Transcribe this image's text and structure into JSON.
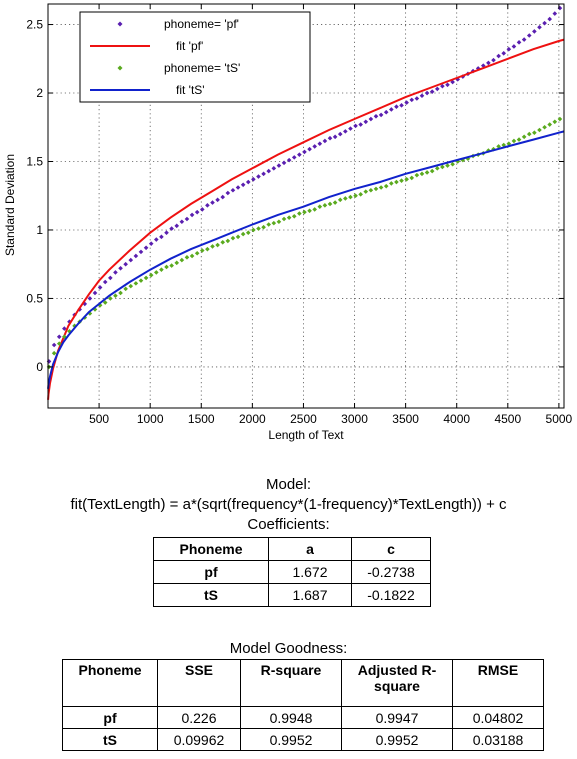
{
  "chart_data": {
    "type": "scatter",
    "xlabel": "Length of Text",
    "ylabel": "Standard Deviation",
    "xlim": [
      0,
      5050
    ],
    "ylim": [
      -0.3,
      2.65
    ],
    "xticks": [
      500,
      1000,
      1500,
      2000,
      2500,
      3000,
      3500,
      4000,
      4500,
      5000
    ],
    "yticks": [
      0,
      0.5,
      1,
      1.5,
      2,
      2.5
    ],
    "grid": true,
    "legend_position": "top-left",
    "series": [
      {
        "name": "phoneme= 'pf'",
        "kind": "points",
        "color": "#5a1fb0",
        "x": [
          10,
          60,
          110,
          160,
          210,
          260,
          310,
          360,
          410,
          460,
          510,
          560,
          610,
          660,
          710,
          760,
          810,
          860,
          910,
          960,
          1010,
          1060,
          1110,
          1160,
          1210,
          1260,
          1310,
          1360,
          1410,
          1460,
          1510,
          1560,
          1610,
          1660,
          1710,
          1760,
          1810,
          1860,
          1910,
          1960,
          2010,
          2060,
          2110,
          2160,
          2210,
          2260,
          2310,
          2360,
          2410,
          2460,
          2510,
          2560,
          2610,
          2660,
          2710,
          2760,
          2810,
          2860,
          2910,
          2960,
          3010,
          3060,
          3110,
          3160,
          3210,
          3260,
          3310,
          3360,
          3410,
          3460,
          3510,
          3560,
          3610,
          3660,
          3710,
          3760,
          3810,
          3860,
          3910,
          3960,
          4010,
          4060,
          4110,
          4160,
          4210,
          4260,
          4310,
          4360,
          4410,
          4460,
          4510,
          4560,
          4610,
          4660,
          4710,
          4760,
          4810,
          4860,
          4910,
          4960,
          5010
        ],
        "y": [
          0.04,
          0.16,
          0.22,
          0.28,
          0.33,
          0.38,
          0.42,
          0.46,
          0.5,
          0.54,
          0.58,
          0.62,
          0.65,
          0.69,
          0.72,
          0.75,
          0.78,
          0.81,
          0.84,
          0.87,
          0.9,
          0.93,
          0.95,
          0.98,
          1.01,
          1.03,
          1.06,
          1.08,
          1.11,
          1.13,
          1.15,
          1.18,
          1.2,
          1.22,
          1.24,
          1.27,
          1.29,
          1.31,
          1.33,
          1.35,
          1.37,
          1.39,
          1.41,
          1.43,
          1.45,
          1.47,
          1.49,
          1.51,
          1.53,
          1.55,
          1.57,
          1.59,
          1.61,
          1.63,
          1.65,
          1.67,
          1.68,
          1.7,
          1.72,
          1.74,
          1.76,
          1.77,
          1.79,
          1.81,
          1.83,
          1.84,
          1.86,
          1.88,
          1.9,
          1.91,
          1.93,
          1.95,
          1.96,
          1.98,
          2.0,
          2.01,
          2.03,
          2.05,
          2.06,
          2.08,
          2.1,
          2.12,
          2.14,
          2.16,
          2.18,
          2.2,
          2.22,
          2.24,
          2.27,
          2.29,
          2.32,
          2.34,
          2.37,
          2.39,
          2.42,
          2.45,
          2.48,
          2.51,
          2.54,
          2.58,
          2.62
        ]
      },
      {
        "name": "fit 'pf'",
        "kind": "line",
        "color": "#ee1111",
        "a": 1.672,
        "c": -0.2738,
        "x": [
          1,
          5,
          20,
          50,
          100,
          150,
          200,
          300,
          400,
          500,
          600,
          800,
          1000,
          1200,
          1400,
          1600,
          1800,
          2000,
          2250,
          2500,
          2750,
          3000,
          3250,
          3500,
          3750,
          4000,
          4250,
          4500,
          4750,
          5000,
          5050
        ],
        "y": [
          -0.24,
          -0.2,
          -0.12,
          -0.01,
          0.12,
          0.21,
          0.3,
          0.42,
          0.53,
          0.63,
          0.71,
          0.85,
          0.98,
          1.09,
          1.19,
          1.28,
          1.37,
          1.45,
          1.55,
          1.64,
          1.73,
          1.81,
          1.89,
          1.97,
          2.04,
          2.11,
          2.18,
          2.25,
          2.32,
          2.38,
          2.39
        ]
      },
      {
        "name": "phoneme= 'tS'",
        "kind": "points",
        "color": "#5aaa1e",
        "x": [
          10,
          60,
          110,
          160,
          210,
          260,
          310,
          360,
          410,
          460,
          510,
          560,
          610,
          660,
          710,
          760,
          810,
          860,
          910,
          960,
          1010,
          1060,
          1110,
          1160,
          1210,
          1260,
          1310,
          1360,
          1410,
          1460,
          1510,
          1560,
          1610,
          1660,
          1710,
          1760,
          1810,
          1860,
          1910,
          1960,
          2010,
          2060,
          2110,
          2160,
          2210,
          2260,
          2310,
          2360,
          2410,
          2460,
          2510,
          2560,
          2610,
          2660,
          2710,
          2760,
          2810,
          2860,
          2910,
          2960,
          3010,
          3060,
          3110,
          3160,
          3210,
          3260,
          3310,
          3360,
          3410,
          3460,
          3510,
          3560,
          3610,
          3660,
          3710,
          3760,
          3810,
          3860,
          3910,
          3960,
          4010,
          4060,
          4110,
          4160,
          4210,
          4260,
          4310,
          4360,
          4410,
          4460,
          4510,
          4560,
          4610,
          4660,
          4710,
          4760,
          4810,
          4860,
          4910,
          4960,
          5010
        ],
        "y": [
          0.0,
          0.1,
          0.17,
          0.22,
          0.26,
          0.3,
          0.33,
          0.36,
          0.39,
          0.42,
          0.45,
          0.47,
          0.5,
          0.52,
          0.54,
          0.57,
          0.59,
          0.61,
          0.63,
          0.65,
          0.67,
          0.69,
          0.71,
          0.73,
          0.74,
          0.76,
          0.78,
          0.8,
          0.81,
          0.83,
          0.85,
          0.86,
          0.88,
          0.89,
          0.91,
          0.92,
          0.94,
          0.95,
          0.97,
          0.98,
          1.0,
          1.01,
          1.02,
          1.04,
          1.05,
          1.06,
          1.08,
          1.09,
          1.1,
          1.12,
          1.13,
          1.14,
          1.15,
          1.17,
          1.18,
          1.19,
          1.2,
          1.22,
          1.23,
          1.24,
          1.25,
          1.26,
          1.28,
          1.29,
          1.3,
          1.31,
          1.32,
          1.34,
          1.35,
          1.36,
          1.37,
          1.38,
          1.4,
          1.41,
          1.42,
          1.43,
          1.45,
          1.46,
          1.47,
          1.48,
          1.5,
          1.51,
          1.52,
          1.54,
          1.55,
          1.56,
          1.58,
          1.59,
          1.61,
          1.62,
          1.63,
          1.65,
          1.66,
          1.68,
          1.7,
          1.71,
          1.73,
          1.75,
          1.77,
          1.79,
          1.81
        ]
      },
      {
        "name": "fit 'tS'",
        "kind": "line",
        "color": "#1122cc",
        "a": 1.687,
        "c": -0.1822,
        "x": [
          1,
          5,
          20,
          50,
          100,
          150,
          200,
          300,
          400,
          500,
          600,
          800,
          1000,
          1200,
          1400,
          1600,
          1800,
          2000,
          2250,
          2500,
          2750,
          3000,
          3250,
          3500,
          3750,
          4000,
          4250,
          4500,
          4750,
          5000,
          5050
        ],
        "y": [
          -0.16,
          -0.13,
          -0.07,
          0.02,
          0.11,
          0.18,
          0.23,
          0.32,
          0.4,
          0.46,
          0.52,
          0.62,
          0.71,
          0.79,
          0.86,
          0.92,
          0.98,
          1.04,
          1.11,
          1.17,
          1.24,
          1.3,
          1.35,
          1.41,
          1.46,
          1.51,
          1.56,
          1.61,
          1.66,
          1.71,
          1.72
        ]
      }
    ]
  },
  "model": {
    "title": "Model:",
    "equation": "fit(TextLength) = a*(sqrt(frequency*(1-frequency)*TextLength)) + c"
  },
  "coefficients": {
    "title": "Coefficients:",
    "headers": [
      "Phoneme",
      "a",
      "c"
    ],
    "rows": [
      [
        "pf",
        "1.672",
        "-0.2738"
      ],
      [
        "tS",
        "1.687",
        "-0.1822"
      ]
    ]
  },
  "goodness": {
    "title": "Model Goodness:",
    "headers": [
      "Phoneme",
      "SSE",
      "R-square",
      "Adjusted R-square",
      "RMSE"
    ],
    "rows": [
      [
        "pf",
        "0.226",
        "0.9948",
        "0.9947",
        "0.04802"
      ],
      [
        "tS",
        "0.09962",
        "0.9952",
        "0.9952",
        "0.03188"
      ]
    ]
  }
}
